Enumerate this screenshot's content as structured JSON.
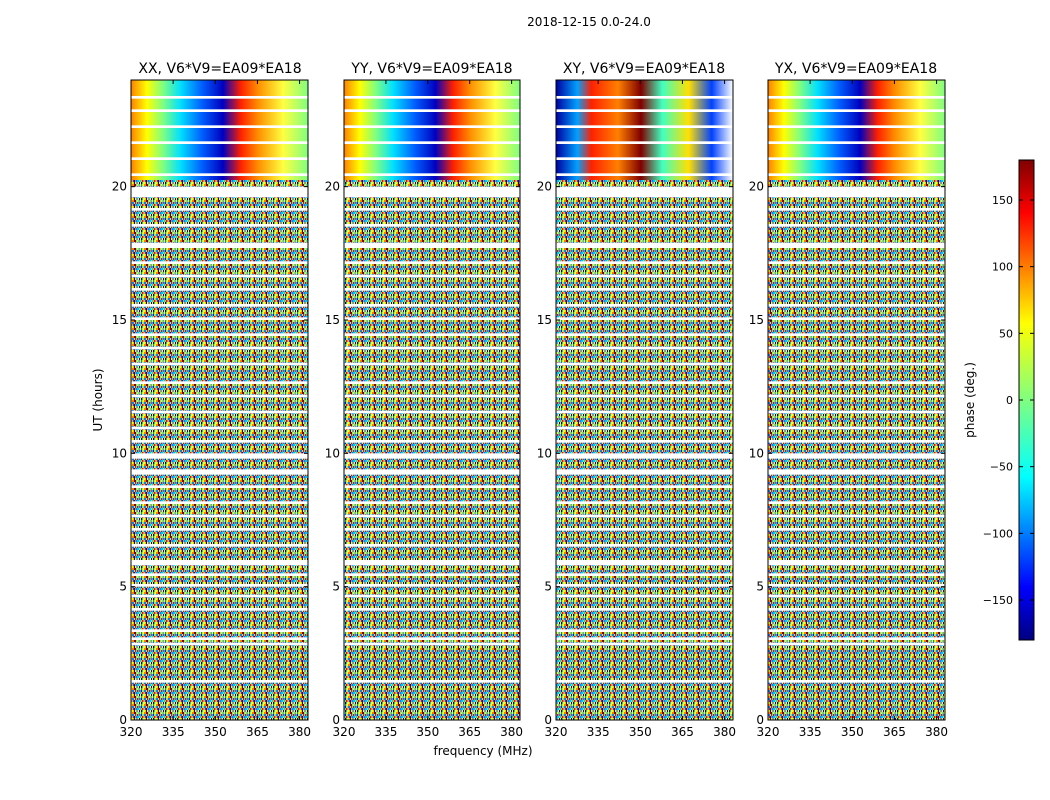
{
  "figure_title": "2018-12-15 0.0-24.0",
  "colors": {
    "frame": "#000000",
    "gap": "#ffffff"
  },
  "chart_data": {
    "type": "heatmap",
    "colormap": "jet",
    "xlabel": "frequency (MHz)",
    "ylabel": "UT (hours)",
    "xlim": [
      320,
      383
    ],
    "ylim": [
      0,
      24
    ],
    "xticks": [
      "320",
      "335",
      "350",
      "365",
      "380"
    ],
    "yticks": [
      "0",
      "5",
      "10",
      "15",
      "20"
    ],
    "colorbar": {
      "label": "phase (deg.)",
      "range": [
        -180,
        180
      ],
      "ticks": [
        "150",
        "100",
        "50",
        "0",
        "−50",
        "−100",
        "−150"
      ],
      "tick_values": [
        150,
        100,
        50,
        0,
        -50,
        -100,
        -150
      ]
    },
    "panels": [
      {
        "title": "XX, V6*V9=EA09*EA18",
        "polarization": "XX"
      },
      {
        "title": "YY, V6*V9=EA09*EA18",
        "polarization": "YY"
      },
      {
        "title": "XY, V6*V9=EA09*EA18",
        "polarization": "XY"
      },
      {
        "title": "YX, V6*V9=EA09*EA18",
        "polarization": "YX"
      }
    ],
    "flagged_ut_intervals": [
      [
        1.4,
        1.5
      ],
      [
        2.8,
        2.9
      ],
      [
        3.0,
        3.1
      ],
      [
        3.3,
        3.4
      ],
      [
        4.1,
        4.2
      ],
      [
        4.6,
        4.7
      ],
      [
        5.0,
        5.1
      ],
      [
        5.4,
        5.5
      ],
      [
        5.8,
        6.0
      ],
      [
        6.5,
        6.6
      ],
      [
        7.1,
        7.2
      ],
      [
        7.6,
        7.7
      ],
      [
        8.1,
        8.2
      ],
      [
        8.7,
        8.8
      ],
      [
        9.2,
        9.4
      ],
      [
        9.8,
        10.0
      ],
      [
        10.4,
        10.5
      ],
      [
        10.9,
        11.0
      ],
      [
        11.5,
        11.6
      ],
      [
        12.1,
        12.2
      ],
      [
        12.6,
        12.7
      ],
      [
        13.3,
        13.4
      ],
      [
        13.9,
        14.0
      ],
      [
        14.4,
        14.5
      ],
      [
        15.0,
        15.1
      ],
      [
        15.5,
        15.6
      ],
      [
        16.1,
        16.2
      ],
      [
        16.6,
        16.7
      ],
      [
        17.1,
        17.2
      ],
      [
        17.7,
        17.9
      ],
      [
        18.5,
        18.6
      ],
      [
        19.1,
        19.2
      ],
      [
        19.6,
        20.0
      ],
      [
        20.4,
        20.5
      ],
      [
        21.0,
        21.1
      ],
      [
        21.6,
        21.7
      ],
      [
        22.2,
        22.3
      ],
      [
        22.8,
        22.9
      ],
      [
        23.3,
        23.4
      ]
    ]
  }
}
